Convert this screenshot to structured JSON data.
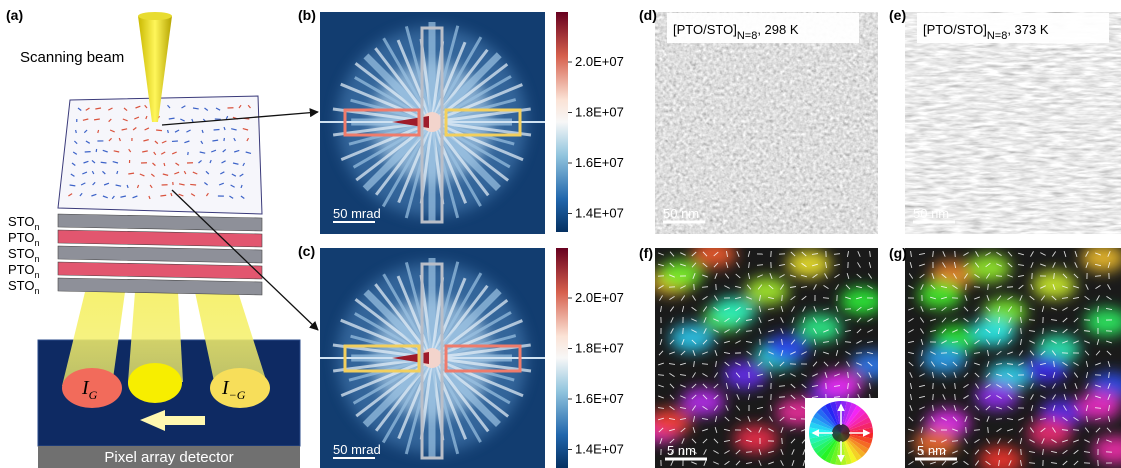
{
  "panels": {
    "a": {
      "label": "(a)",
      "beam_label": "Scanning beam",
      "layers": [
        {
          "name": "STO",
          "sub": "n"
        },
        {
          "name": "PTO",
          "sub": "n"
        },
        {
          "name": "STO",
          "sub": "n"
        },
        {
          "name": "PTO",
          "sub": "n"
        },
        {
          "name": "STO",
          "sub": "n"
        }
      ],
      "intensity_left": {
        "symbol": "I",
        "sub": "G⃗"
      },
      "intensity_right": {
        "symbol": "I",
        "sub": "−G⃗"
      },
      "detector": "Pixel array detector"
    },
    "b": {
      "label": "(b)",
      "scale": "50 mrad",
      "colorbar_ticks": [
        "2.0E+07",
        "1.8E+07",
        "1.6E+07",
        "1.4E+07"
      ]
    },
    "c": {
      "label": "(c)",
      "scale": "50 mrad",
      "colorbar_ticks": [
        "2.0E+07",
        "1.8E+07",
        "1.6E+07",
        "1.4E+07"
      ]
    },
    "d": {
      "label": "(d)",
      "title": {
        "main": "[PTO/STO]",
        "sub": "N=8",
        "rest": ", 298 K"
      },
      "scale": "50 nm"
    },
    "e": {
      "label": "(e)",
      "title": {
        "main": "[PTO/STO]",
        "sub": "N=8",
        "rest": ", 373 K"
      },
      "scale": "50 nm"
    },
    "f": {
      "label": "(f)",
      "scale": "5 nm"
    },
    "g": {
      "label": "(g)",
      "scale": "5 nm"
    }
  }
}
